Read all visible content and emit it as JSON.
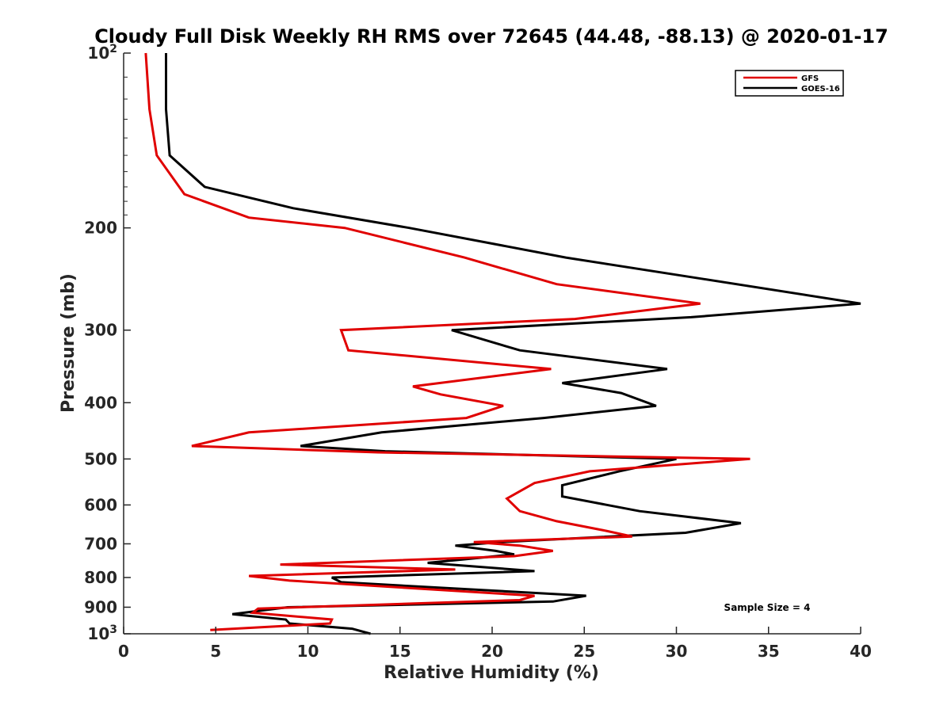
{
  "chart_data": {
    "type": "line",
    "title": "Cloudy Full Disk Weekly RH RMS over 72645 (44.48, -88.13) @ 2020-01-17",
    "xlabel": "Relative Humidity (%)",
    "ylabel": "Pressure (mb)",
    "xlim": [
      0,
      40
    ],
    "ylim": [
      100,
      1000
    ],
    "y_scale": "log",
    "y_reversed": true,
    "x_ticks": [
      "0",
      "5",
      "10",
      "15",
      "20",
      "25",
      "30",
      "35",
      "40"
    ],
    "y_ticks": [
      {
        "value": 100,
        "label": "10",
        "sup": "2"
      },
      {
        "value": 200,
        "label": "200",
        "sup": ""
      },
      {
        "value": 300,
        "label": "300",
        "sup": ""
      },
      {
        "value": 400,
        "label": "400",
        "sup": ""
      },
      {
        "value": 500,
        "label": "500",
        "sup": ""
      },
      {
        "value": 600,
        "label": "600",
        "sup": ""
      },
      {
        "value": 700,
        "label": "700",
        "sup": ""
      },
      {
        "value": 800,
        "label": "800",
        "sup": ""
      },
      {
        "value": 900,
        "label": "900",
        "sup": ""
      },
      {
        "value": 1000,
        "label": "10",
        "sup": "3"
      }
    ],
    "grid": false,
    "legend_position": "top-right",
    "annotation": "Sample Size = 4",
    "series": [
      {
        "name": "GFS",
        "color": "#e00000",
        "points": [
          [
            1.2,
            100
          ],
          [
            1.4,
            125
          ],
          [
            1.8,
            150
          ],
          [
            3.3,
            175
          ],
          [
            6.8,
            192
          ],
          [
            12,
            200
          ],
          [
            18.5,
            225
          ],
          [
            23.5,
            250
          ],
          [
            31.3,
            270
          ],
          [
            24.5,
            287
          ],
          [
            11.8,
            300
          ],
          [
            12.2,
            325
          ],
          [
            23.2,
            350
          ],
          [
            15.7,
            375
          ],
          [
            17.2,
            387
          ],
          [
            20.6,
            405
          ],
          [
            18.6,
            425
          ],
          [
            6.8,
            450
          ],
          [
            3.7,
            475
          ],
          [
            13.8,
            487
          ],
          [
            34,
            500
          ],
          [
            25.3,
            525
          ],
          [
            22.3,
            550
          ],
          [
            20.8,
            585
          ],
          [
            21.5,
            615
          ],
          [
            23.5,
            640
          ],
          [
            26.2,
            665
          ],
          [
            27.6,
            680
          ],
          [
            19.0,
            695
          ],
          [
            21.5,
            705
          ],
          [
            23.3,
            720
          ],
          [
            21.2,
            735
          ],
          [
            8.5,
            760
          ],
          [
            18.0,
            775
          ],
          [
            6.8,
            795
          ],
          [
            9.0,
            810
          ],
          [
            22.3,
            860
          ],
          [
            21.5,
            875
          ],
          [
            7.3,
            905
          ],
          [
            7.0,
            920
          ],
          [
            11.3,
            945
          ],
          [
            11.2,
            960
          ],
          [
            4.7,
            985
          ]
        ]
      },
      {
        "name": "GOES-16",
        "color": "#000000",
        "points": [
          [
            2.3,
            100
          ],
          [
            2.3,
            125
          ],
          [
            2.5,
            150
          ],
          [
            4.4,
            170
          ],
          [
            9.2,
            185
          ],
          [
            15.5,
            200
          ],
          [
            24.0,
            225
          ],
          [
            31.5,
            245
          ],
          [
            40,
            270
          ],
          [
            30.8,
            285
          ],
          [
            17.8,
            300
          ],
          [
            21.5,
            325
          ],
          [
            29.5,
            350
          ],
          [
            23.8,
            370
          ],
          [
            27.0,
            385
          ],
          [
            28.9,
            405
          ],
          [
            22.8,
            425
          ],
          [
            14.0,
            450
          ],
          [
            9.6,
            475
          ],
          [
            14.2,
            485
          ],
          [
            30.0,
            500
          ],
          [
            26.9,
            525
          ],
          [
            23.8,
            555
          ],
          [
            23.8,
            580
          ],
          [
            28.0,
            615
          ],
          [
            33.5,
            645
          ],
          [
            30.5,
            670
          ],
          [
            20.5,
            695
          ],
          [
            18.0,
            705
          ],
          [
            20.2,
            720
          ],
          [
            21.2,
            730
          ],
          [
            16.5,
            755
          ],
          [
            22.3,
            780
          ],
          [
            11.3,
            800
          ],
          [
            11.8,
            815
          ],
          [
            25.1,
            860
          ],
          [
            23.3,
            880
          ],
          [
            8.9,
            900
          ],
          [
            5.9,
            925
          ],
          [
            8.8,
            945
          ],
          [
            9.0,
            960
          ],
          [
            12.4,
            980
          ],
          [
            13.4,
            1000
          ]
        ]
      }
    ]
  }
}
